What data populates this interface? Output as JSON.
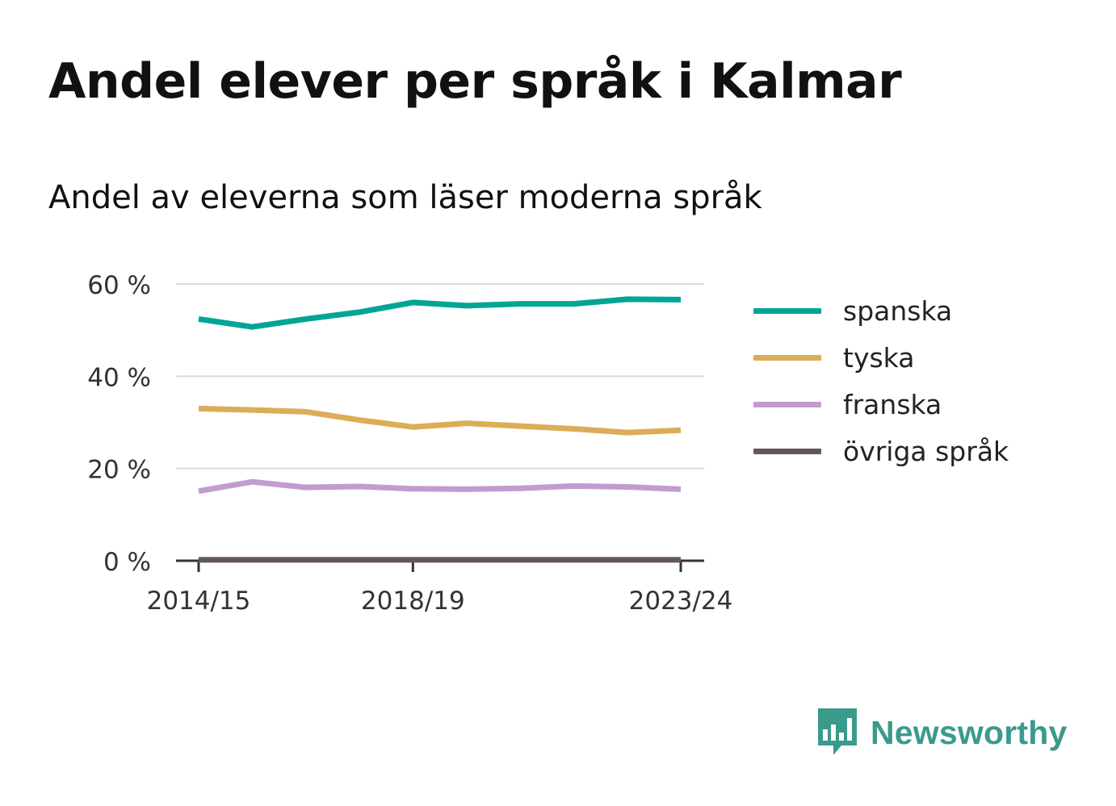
{
  "title": "Andel elever per språk i Kalmar",
  "subtitle": "Andel av eleverna som läser moderna språk",
  "brand": {
    "name": "Newsworthy",
    "icon": "bar-chart-speech-bubble-icon",
    "color": "#3a9a8c"
  },
  "chart_data": {
    "type": "line",
    "x": [
      "2014/15",
      "2015/16",
      "2016/17",
      "2017/18",
      "2018/19",
      "2019/20",
      "2020/21",
      "2021/22",
      "2022/23",
      "2023/24"
    ],
    "x_tick_labels": [
      "2014/15",
      "2018/19",
      "2023/24"
    ],
    "y_ticks": [
      "0 %",
      "20 %",
      "40 %",
      "60 %"
    ],
    "y_tick_values": [
      0,
      20,
      40,
      60
    ],
    "ylim": [
      0,
      60
    ],
    "grid": true,
    "legend_position": "right",
    "series": [
      {
        "name": "spanska",
        "color": "#00a596",
        "values": [
          52.4,
          50.7,
          52.4,
          53.9,
          56.0,
          55.3,
          55.7,
          55.7,
          56.7,
          56.6
        ]
      },
      {
        "name": "tyska",
        "color": "#dbad57",
        "values": [
          33.0,
          32.7,
          32.3,
          30.5,
          29.0,
          29.8,
          29.2,
          28.6,
          27.8,
          28.3
        ]
      },
      {
        "name": "franska",
        "color": "#c39ccf",
        "values": [
          15.1,
          17.1,
          15.9,
          16.1,
          15.6,
          15.5,
          15.7,
          16.2,
          16.0,
          15.5
        ]
      },
      {
        "name": "övriga språk",
        "color": "#66555e",
        "values": [
          0.2,
          0.2,
          0.2,
          0.2,
          0.2,
          0.2,
          0.2,
          0.2,
          0.2,
          0.2
        ]
      }
    ]
  }
}
